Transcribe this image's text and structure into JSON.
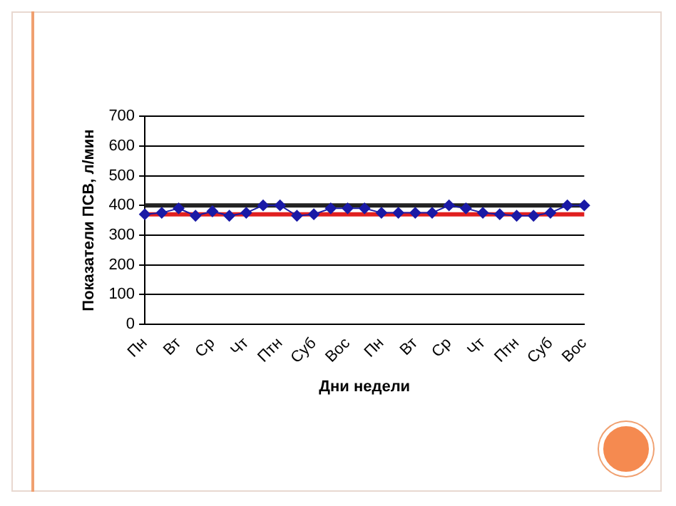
{
  "chart_data": {
    "type": "line",
    "xlabel": "Дни недели",
    "ylabel": "Показатели ПСВ, л/мин",
    "categories": [
      "Пн",
      null,
      "Вт",
      null,
      "Ср",
      null,
      "Чт",
      null,
      "Птн",
      null,
      "Суб",
      null,
      "Вос",
      null,
      "Пн",
      null,
      "Вт",
      null,
      "Ср",
      null,
      "Чт",
      null,
      "Птн",
      null,
      "Суб",
      null,
      "Вос"
    ],
    "series": [
      {
        "color": "#1a1aa6",
        "values": [
          370,
          375,
          390,
          365,
          380,
          365,
          375,
          400,
          400,
          365,
          370,
          390,
          390,
          390,
          375,
          375,
          375,
          375,
          400,
          390,
          375,
          370,
          365,
          365,
          375,
          400,
          400
        ]
      }
    ],
    "ylim": [
      0,
      700
    ],
    "yticks": [
      0,
      100,
      200,
      300,
      400,
      500,
      600,
      700
    ],
    "grid": "y",
    "legend": false,
    "marker": "diamond",
    "line_style": "solid",
    "ref_lines": [
      {
        "axis": "y",
        "value": 370,
        "color": "#e02020"
      },
      {
        "axis": "y",
        "value": 400,
        "color": "#222222"
      }
    ]
  }
}
